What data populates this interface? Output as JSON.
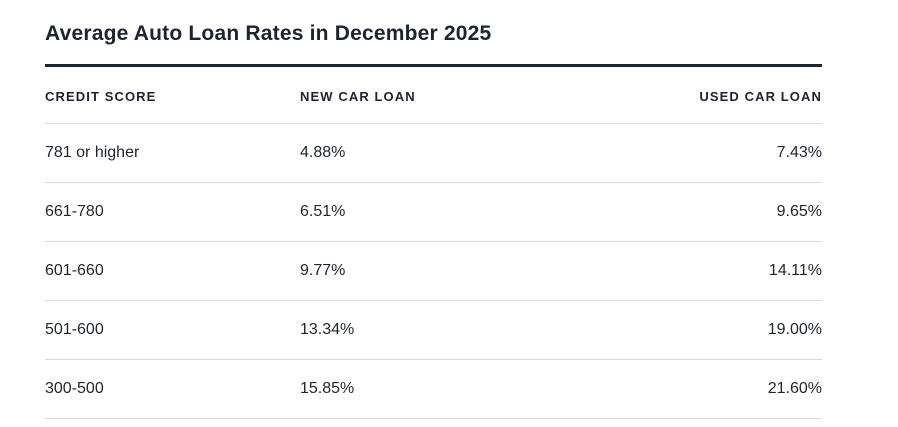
{
  "title": "Average Auto Loan Rates in December 2025",
  "table": {
    "columns": [
      "CREDIT SCORE",
      "NEW CAR LOAN",
      "USED CAR LOAN"
    ],
    "rows": [
      {
        "credit_score": "781 or higher",
        "new_car": "4.88%",
        "used_car": "7.43%"
      },
      {
        "credit_score": "661-780",
        "new_car": "6.51%",
        "used_car": "9.65%"
      },
      {
        "credit_score": "601-660",
        "new_car": "9.77%",
        "used_car": "14.11%"
      },
      {
        "credit_score": "501-600",
        "new_car": "13.34%",
        "used_car": "19.00%"
      },
      {
        "credit_score": "300-500",
        "new_car": "15.85%",
        "used_car": "21.60%"
      }
    ]
  },
  "colors": {
    "heading_text": "#1b2430",
    "body_text": "#1f2430",
    "title_rule": "#1b2430",
    "row_divider": "#d9d9d9",
    "background": "#ffffff"
  },
  "chart_data": {
    "type": "table",
    "title": "Average Auto Loan Rates in December 2025",
    "columns": [
      "CREDIT SCORE",
      "NEW CAR LOAN",
      "USED CAR LOAN"
    ],
    "rows": [
      [
        "781 or higher",
        "4.88%",
        "7.43%"
      ],
      [
        "661-780",
        "6.51%",
        "9.65%"
      ],
      [
        "601-660",
        "9.77%",
        "14.11%"
      ],
      [
        "501-600",
        "13.34%",
        "19.00%"
      ],
      [
        "300-500",
        "15.85%",
        "21.60%"
      ]
    ],
    "series": [
      {
        "name": "NEW CAR LOAN",
        "values_pct": [
          4.88,
          6.51,
          9.77,
          13.34,
          15.85
        ]
      },
      {
        "name": "USED CAR LOAN",
        "values_pct": [
          7.43,
          9.65,
          14.11,
          19.0,
          21.6
        ]
      }
    ],
    "categories": [
      "781 or higher",
      "661-780",
      "601-660",
      "501-600",
      "300-500"
    ]
  }
}
